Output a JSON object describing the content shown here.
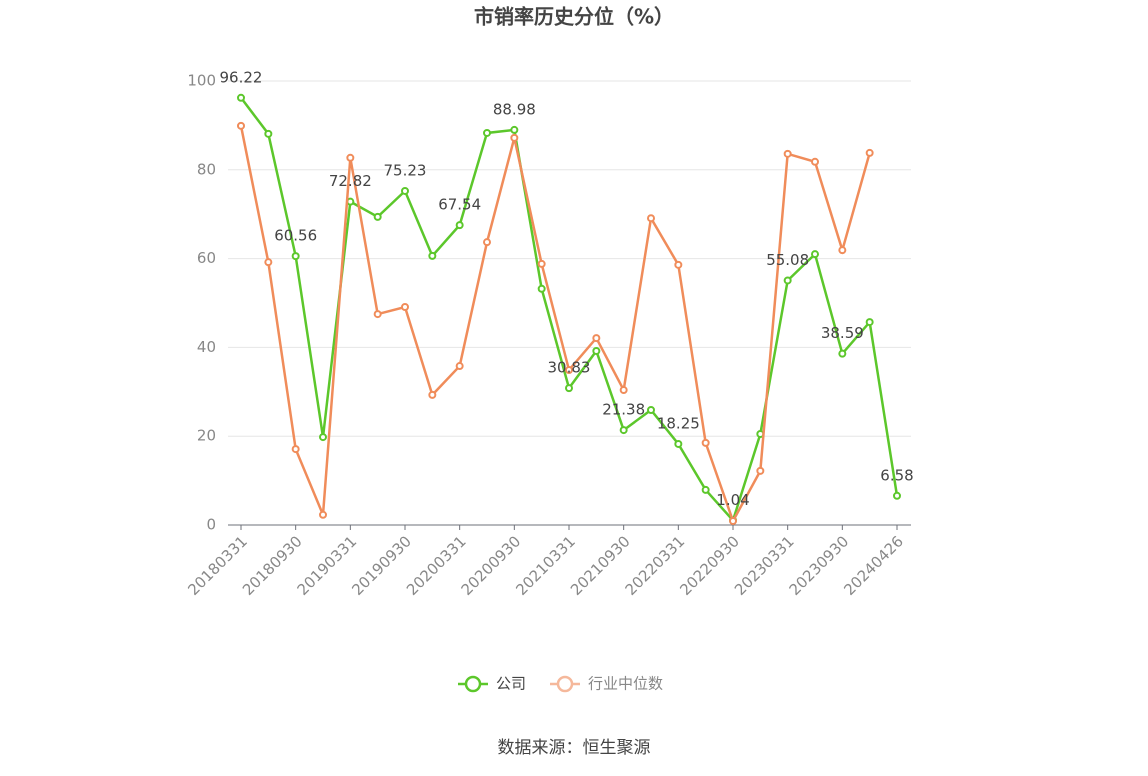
{
  "chart_data": {
    "type": "line",
    "title": "市销率历史分位（%）",
    "categories": [
      "20180331",
      null,
      "20180930",
      null,
      "20190331",
      null,
      "20190930",
      null,
      "20200331",
      null,
      "20200930",
      null,
      "20210331",
      null,
      "20210930",
      null,
      "20220331",
      null,
      "20220930",
      null,
      "20230331",
      null,
      "20230930",
      null,
      "20240426"
    ],
    "series": [
      {
        "name": "公司",
        "color": "#5cc72b",
        "values": [
          96.22,
          88.1,
          60.56,
          19.8,
          72.82,
          69.4,
          75.23,
          60.6,
          67.54,
          88.3,
          88.98,
          53.2,
          30.83,
          39.2,
          21.38,
          25.9,
          18.25,
          7.9,
          1.04,
          20.5,
          55.08,
          61.0,
          38.59,
          45.7,
          6.58
        ],
        "value_labels": [
          "96.22",
          null,
          "60.56",
          null,
          "72.82",
          null,
          "75.23",
          null,
          "67.54",
          null,
          "88.98",
          null,
          "30.83",
          null,
          "21.38",
          null,
          "18.25",
          null,
          "1.04",
          null,
          "55.08",
          null,
          "38.59",
          null,
          "6.58"
        ]
      },
      {
        "name": "行业中位数",
        "color": "#f08c5a",
        "values": [
          89.9,
          59.2,
          17.1,
          2.3,
          82.7,
          47.5,
          49.1,
          29.3,
          35.8,
          63.7,
          87.2,
          58.8,
          34.9,
          42.1,
          30.4,
          69.1,
          58.6,
          18.5,
          0.9,
          12.2,
          83.6,
          81.8,
          61.9,
          83.8,
          null
        ]
      }
    ],
    "ylim": [
      0,
      100
    ],
    "yticks": [
      0,
      20,
      40,
      60,
      80,
      100
    ],
    "grid": true,
    "legend": "bottom",
    "source": "数据来源：恒生聚源"
  }
}
